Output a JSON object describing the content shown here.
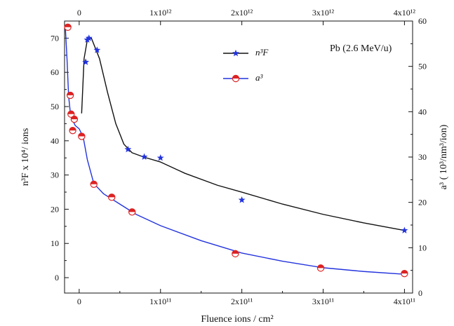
{
  "chart_data": {
    "type": "scatter",
    "annotation": "Pb (2.6 MeV/u)",
    "xlabel": "Fluence ions / cm²",
    "ylabel_left": "n³F x 10⁴/ ions",
    "ylabel_right": "a³ ( 10³/nm³/ion)",
    "xlim": [
      -18000000000,
      410000000000
    ],
    "x_ticks": [
      0,
      100000000000,
      200000000000,
      300000000000,
      400000000000
    ],
    "x_tick_labels": [
      "0",
      "1x10¹¹",
      "2x10¹¹",
      "3x10¹¹",
      "4x10¹¹"
    ],
    "top_axis": {
      "xlim": [
        -180000000000,
        4100000000000
      ],
      "ticks": [
        0,
        1000000000000,
        2000000000000,
        3000000000000,
        4000000000000
      ],
      "tick_labels": [
        "0",
        "1x10¹²",
        "2x10¹²",
        "3x10¹²",
        "4x10¹²"
      ]
    },
    "ylim_left": [
      -4.5,
      75
    ],
    "y_ticks_left": [
      0,
      10,
      20,
      30,
      40,
      50,
      60,
      70
    ],
    "ylim_right": [
      0,
      60
    ],
    "y_ticks_right": [
      0,
      10,
      20,
      30,
      40,
      50,
      60
    ],
    "series": [
      {
        "name": "n³F",
        "axis": "left",
        "marker": "star",
        "color": "#2233dd",
        "line_color": "#111111",
        "points": [
          [
            8000000000,
            63
          ],
          [
            10000000000,
            69.5
          ],
          [
            12000000000,
            70
          ],
          [
            22000000000,
            66.5
          ],
          [
            60000000000,
            37.5
          ],
          [
            80000000000,
            35.3
          ],
          [
            100000000000,
            35
          ],
          [
            200000000000,
            22.7
          ],
          [
            400000000000,
            13.8
          ]
        ],
        "curve": [
          [
            3000000000,
            48
          ],
          [
            6000000000,
            64
          ],
          [
            10000000000,
            69.5
          ],
          [
            15000000000,
            70
          ],
          [
            25000000000,
            64
          ],
          [
            35000000000,
            54
          ],
          [
            45000000000,
            45
          ],
          [
            55000000000,
            39
          ],
          [
            65000000000,
            36.5
          ],
          [
            80000000000,
            35.2
          ],
          [
            100000000000,
            33.8
          ],
          [
            130000000000,
            30.5
          ],
          [
            170000000000,
            27
          ],
          [
            200000000000,
            25
          ],
          [
            250000000000,
            21.5
          ],
          [
            300000000000,
            18.5
          ],
          [
            350000000000,
            16
          ],
          [
            400000000000,
            13.8
          ]
        ]
      },
      {
        "name": "a³",
        "axis": "left",
        "marker": "circle",
        "color": "#dd2222",
        "line_color": "#2233dd",
        "points": [
          [
            -14000000000,
            73.2
          ],
          [
            -11000000000,
            53.3
          ],
          [
            -10000000000,
            47.8
          ],
          [
            -8000000000,
            43
          ],
          [
            -6000000000,
            46.3
          ],
          [
            3000000000,
            41.3
          ],
          [
            18000000000,
            27.3
          ],
          [
            40000000000,
            23.5
          ],
          [
            65000000000,
            19.2
          ],
          [
            192000000000,
            7
          ],
          [
            297000000000,
            2.8
          ],
          [
            400000000000,
            1.2
          ]
        ],
        "curve": [
          [
            -17000000000,
            73
          ],
          [
            -15000000000,
            64
          ],
          [
            -13000000000,
            53
          ],
          [
            -11000000000,
            48.5
          ],
          [
            -9000000000,
            46.5
          ],
          [
            -5000000000,
            44.5
          ],
          [
            0,
            43.5
          ],
          [
            5000000000,
            41
          ],
          [
            10000000000,
            34.5
          ],
          [
            18000000000,
            27.5
          ],
          [
            30000000000,
            24.5
          ],
          [
            50000000000,
            21.5
          ],
          [
            70000000000,
            18.5
          ],
          [
            100000000000,
            15.2
          ],
          [
            150000000000,
            10.8
          ],
          [
            200000000000,
            7.2
          ],
          [
            250000000000,
            4.8
          ],
          [
            300000000000,
            2.9
          ],
          [
            350000000000,
            1.8
          ],
          [
            400000000000,
            1
          ]
        ]
      }
    ],
    "legend_position": "top-center",
    "grid": false
  }
}
